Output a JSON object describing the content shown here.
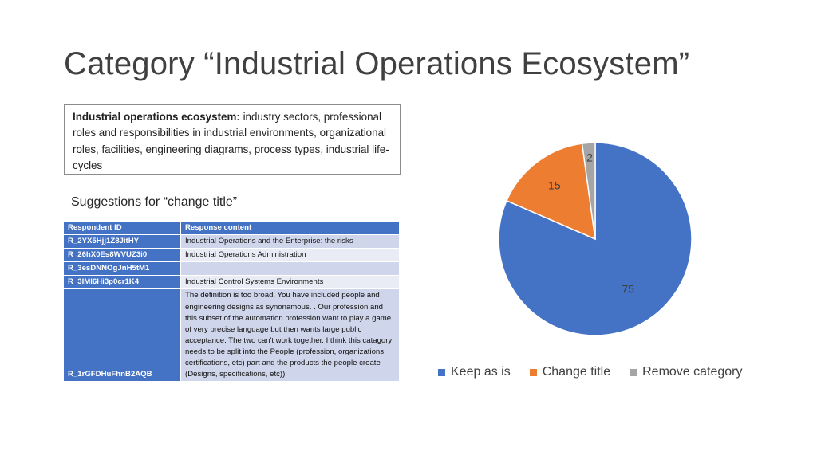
{
  "slide": {
    "title": "Category “Industrial Operations Ecosystem”",
    "definition_term": "Industrial operations ecosystem:",
    "definition_text": " industry sectors, professional roles and responsibilities in industrial environments, organizational roles, facilities, engineering diagrams, process types, industrial life-cycles",
    "subtitle": "Suggestions for “change title”"
  },
  "table": {
    "headers": [
      "Respondent ID",
      "Response content"
    ],
    "rows": [
      {
        "id": "R_2YX5Hjj1Z8JitHY",
        "content": "Industrial Operations and the Enterprise: the risks"
      },
      {
        "id": "R_26hX0Es8WVUZ3i0",
        "content": "Industrial Operations Administration"
      },
      {
        "id": "R_3esDNNOgJnH5tM1",
        "content": ""
      },
      {
        "id": "R_3lMl6Hi3p0cr1K4",
        "content": "Industrial Control Systems Environments"
      },
      {
        "id": "R_1rGFDHuFhnB2AQB",
        "content": "The definition is too broad.  You have included people and engineering designs as synonamous.  .  Our profession and this subset of the automation profession want to play a game of very precise language but then wants large public acceptance.  The two can't work together.  I think this catagory needs to be split into the People (profession, organizations, certifications, etc)  part and the products the people create (Designs, specifications, etc))"
      }
    ]
  },
  "chart_data": {
    "type": "pie",
    "categories": [
      "Keep as is",
      "Change title",
      "Remove category"
    ],
    "values": [
      75,
      15,
      2
    ],
    "colors": [
      "#4472c4",
      "#ed7d31",
      "#a5a5a5"
    ],
    "legend_position": "bottom"
  }
}
